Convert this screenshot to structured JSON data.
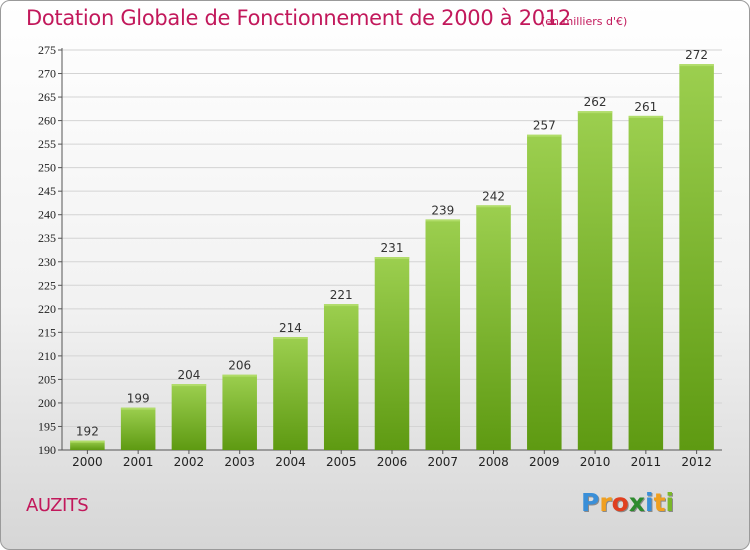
{
  "chart_data": {
    "type": "bar",
    "title": "Dotation Globale de Fonctionnement de 2000 à 2012",
    "subtitle": "(en milliers d'€)",
    "categories": [
      "2000",
      "2001",
      "2002",
      "2003",
      "2004",
      "2005",
      "2006",
      "2007",
      "2008",
      "2009",
      "2010",
      "2011",
      "2012"
    ],
    "values": [
      192,
      199,
      204,
      206,
      214,
      221,
      231,
      239,
      242,
      257,
      262,
      261,
      272
    ],
    "ylim": [
      190,
      275
    ],
    "yticks": [
      190,
      195,
      200,
      205,
      210,
      215,
      220,
      225,
      230,
      235,
      240,
      245,
      250,
      255,
      260,
      265,
      270,
      275
    ],
    "grid": true,
    "xlabel": "",
    "ylabel": "",
    "bar_color_top": "#9ccf4f",
    "bar_color_bottom": "#5e9a12"
  },
  "commune": "AUZITS",
  "brand": {
    "letters": [
      "P",
      "r",
      "o",
      "x",
      "i",
      "t",
      "i"
    ]
  }
}
